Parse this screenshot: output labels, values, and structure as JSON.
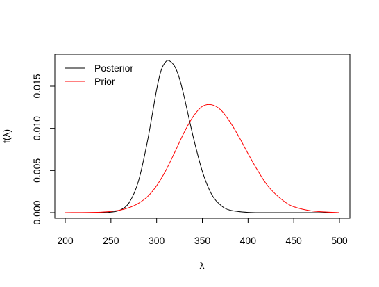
{
  "chart_data": {
    "type": "line",
    "xlabel": "λ",
    "ylabel": "f(λ)",
    "xlim": [
      200,
      500
    ],
    "ylim": [
      0,
      0.018
    ],
    "x_ticks": [
      200,
      250,
      300,
      350,
      400,
      450,
      500
    ],
    "x_tick_labels": [
      "200",
      "250",
      "300",
      "350",
      "400",
      "450",
      "500"
    ],
    "y_ticks": [
      0,
      0.005,
      0.01,
      0.015
    ],
    "y_tick_labels": [
      "0.000",
      "0.005",
      "0.010",
      "0.015"
    ],
    "legend_position": "top-left",
    "series": [
      {
        "name": "Posterior",
        "color": "#000000",
        "x": [
          200,
          220,
          240,
          250,
          260,
          270,
          280,
          290,
          300,
          305,
          310,
          314,
          320,
          325,
          330,
          340,
          350,
          360,
          370,
          380,
          400,
          420,
          450,
          500
        ],
        "y": [
          0.0,
          0.0,
          0.0,
          6e-05,
          0.0003,
          0.0012,
          0.0037,
          0.0085,
          0.0146,
          0.0169,
          0.0179,
          0.018,
          0.0173,
          0.0159,
          0.0138,
          0.009,
          0.0049,
          0.0022,
          0.0009,
          0.0003,
          3e-05,
          0.0,
          0.0,
          0.0
        ]
      },
      {
        "name": "Prior",
        "color": "#ff0000",
        "x": [
          200,
          240,
          260,
          270,
          280,
          290,
          300,
          310,
          320,
          330,
          340,
          350,
          360,
          370,
          380,
          390,
          400,
          410,
          420,
          430,
          440,
          450,
          470,
          500
        ],
        "y": [
          0.0,
          6e-05,
          0.0003,
          0.0006,
          0.0011,
          0.0019,
          0.0032,
          0.005,
          0.0072,
          0.0095,
          0.0114,
          0.0126,
          0.0128,
          0.0122,
          0.0108,
          0.009,
          0.007,
          0.0051,
          0.0034,
          0.0022,
          0.0013,
          0.0007,
          0.0002,
          0.0
        ]
      }
    ]
  }
}
